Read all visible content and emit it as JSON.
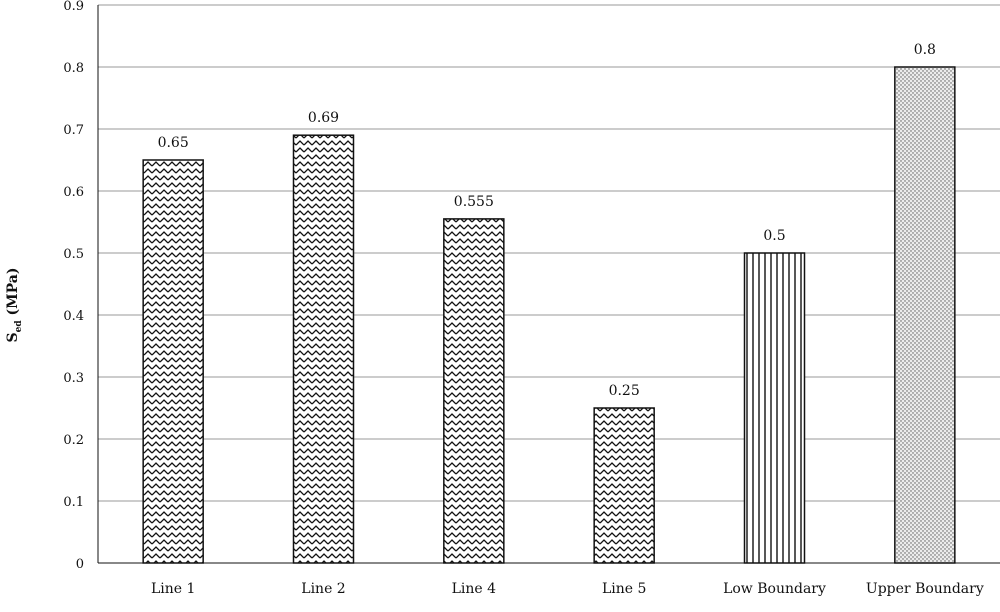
{
  "chart_data": {
    "type": "bar",
    "categories": [
      "Line 1",
      "Line 2",
      "Line 4",
      "Line 5",
      "Low Boundary",
      "Upper Boundary"
    ],
    "values": [
      0.65,
      0.69,
      0.555,
      0.25,
      0.5,
      0.8
    ],
    "data_labels": [
      "0.65",
      "0.69",
      "0.555",
      "0.25",
      "0.5",
      "0.8"
    ],
    "bar_patterns": [
      "zigzag",
      "zigzag",
      "zigzag",
      "zigzag",
      "vertical-lines",
      "dots"
    ],
    "title": "",
    "xlabel": "",
    "ylabel": {
      "main": "S",
      "subscript": "ed",
      "suffix": " (MPa)"
    },
    "ylim": [
      0,
      0.9
    ],
    "yticks": [
      "0",
      "0.1",
      "0.2",
      "0.3",
      "0.4",
      "0.5",
      "0.6",
      "0.7",
      "0.8",
      "0.9"
    ],
    "grid": true,
    "colors": {
      "bar_stroke": "#111111",
      "grid": "#999999",
      "bar_fill": "#ffffff"
    }
  }
}
